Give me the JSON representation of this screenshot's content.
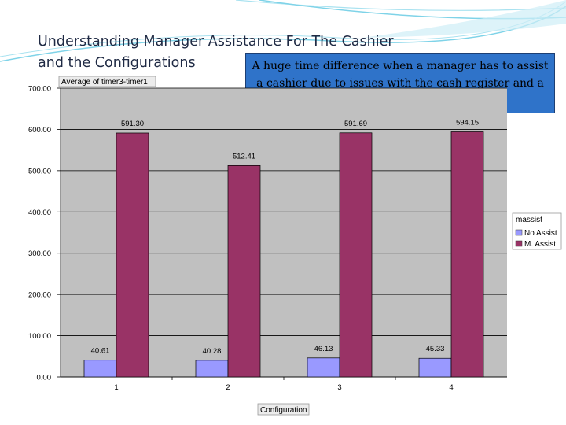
{
  "slide": {
    "title": "Understanding Manager Assistance For The Cashier\nand the Configurations",
    "callout": "A huge time difference when a manager has to assist a cashier due to issues with the cash register and a typical unassisted transaction."
  },
  "colors": {
    "plot_bg": "#c0c0c0",
    "no_assist": "#9999ff",
    "m_assist": "#993366",
    "callout_bg": "#2f73c9",
    "deco": "#7fd3e8"
  },
  "chart_data": {
    "type": "bar",
    "data_field": "Average of timer3-timer1",
    "xlabel": "Configuration",
    "categories": [
      "1",
      "2",
      "3",
      "4"
    ],
    "series": [
      {
        "name": "No Assist",
        "values": [
          40.61,
          40.28,
          46.13,
          45.33
        ],
        "labels": [
          "40.61",
          "40.28",
          "46.13",
          "45.33"
        ]
      },
      {
        "name": "M. Assist",
        "values": [
          591.3,
          512.41,
          591.69,
          594.15
        ],
        "labels": [
          "591.30",
          "512.41",
          "591.69",
          "594.15"
        ]
      }
    ],
    "legend_title": "massist",
    "legend_position": "right",
    "ylim": [
      0,
      700
    ],
    "yticks": [
      0,
      100,
      200,
      300,
      400,
      500,
      600,
      700
    ],
    "ytick_labels": [
      "0.00",
      "100.00",
      "200.00",
      "300.00",
      "400.00",
      "500.00",
      "600.00",
      "700.00"
    ],
    "grid": true
  }
}
